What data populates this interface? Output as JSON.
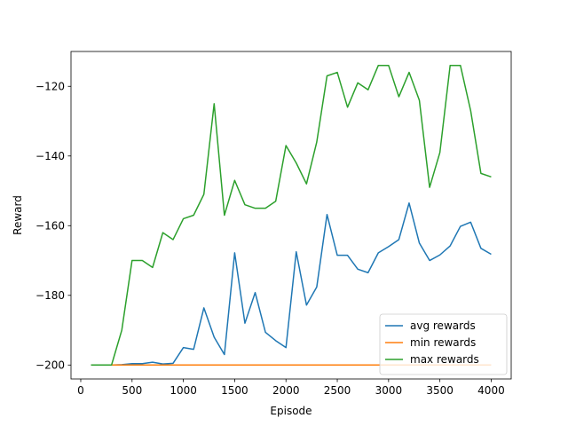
{
  "chart_data": {
    "type": "line",
    "title": "",
    "xlabel": "Episode",
    "ylabel": "Reward",
    "xlim": [
      -95,
      4195
    ],
    "ylim": [
      -204,
      -110
    ],
    "xticks": [
      0,
      500,
      1000,
      1500,
      2000,
      2500,
      3000,
      3500,
      4000
    ],
    "yticks": [
      -200,
      -180,
      -160,
      -140,
      -120
    ],
    "xtick_labels": [
      "0",
      "500",
      "1000",
      "1500",
      "2000",
      "2500",
      "3000",
      "3500",
      "4000"
    ],
    "ytick_labels": [
      "−200",
      "−180",
      "−160",
      "−140",
      "−120"
    ],
    "grid": false,
    "legend_position": "lower-right",
    "x": [
      100,
      200,
      300,
      400,
      500,
      600,
      700,
      800,
      900,
      1000,
      1100,
      1200,
      1300,
      1400,
      1500,
      1600,
      1700,
      1800,
      1900,
      2000,
      2100,
      2200,
      2300,
      2400,
      2500,
      2600,
      2700,
      2800,
      2900,
      3000,
      3100,
      3200,
      3300,
      3400,
      3500,
      3600,
      3700,
      3800,
      3900,
      4000
    ],
    "series": [
      {
        "name": "avg rewards",
        "color": "#1f77b4",
        "values": [
          -200,
          -200,
          -200,
          -199.9,
          -199.6,
          -199.6,
          -199.2,
          -199.7,
          -199.5,
          -195,
          -195.5,
          -183.6,
          -192,
          -197,
          -167.8,
          -188,
          -179.2,
          -190.6,
          -193,
          -195,
          -167.5,
          -182.8,
          -177.6,
          -156.8,
          -168.5,
          -168.5,
          -172.5,
          -173.5,
          -167.8,
          -166,
          -164,
          -153.5,
          -165,
          -170,
          -168.4,
          -165.8,
          -160.2,
          -159,
          -166.5,
          -168.2
        ]
      },
      {
        "name": "min rewards",
        "color": "#ff7f0e",
        "values": [
          -200,
          -200,
          -200,
          -200,
          -200,
          -200,
          -200,
          -200,
          -200,
          -200,
          -200,
          -200,
          -200,
          -200,
          -200,
          -200,
          -200,
          -200,
          -200,
          -200,
          -200,
          -200,
          -200,
          -200,
          -200,
          -200,
          -200,
          -200,
          -200,
          -200,
          -200,
          -200,
          -200,
          -200,
          -200,
          -200,
          -200,
          -200,
          -200,
          -200
        ]
      },
      {
        "name": "max rewards",
        "color": "#2ca02c",
        "values": [
          -200,
          -200,
          -200,
          -190,
          -170,
          -170,
          -172,
          -162,
          -164,
          -158,
          -157,
          -151,
          -125,
          -157,
          -147,
          -154,
          -155,
          -155,
          -153,
          -137,
          -142,
          -148,
          -136,
          -117,
          -116,
          -126,
          -119,
          -121,
          -114,
          -114,
          -123,
          -116,
          -124,
          -149,
          -139,
          -114,
          -114,
          -127,
          -145,
          -146
        ]
      }
    ]
  }
}
